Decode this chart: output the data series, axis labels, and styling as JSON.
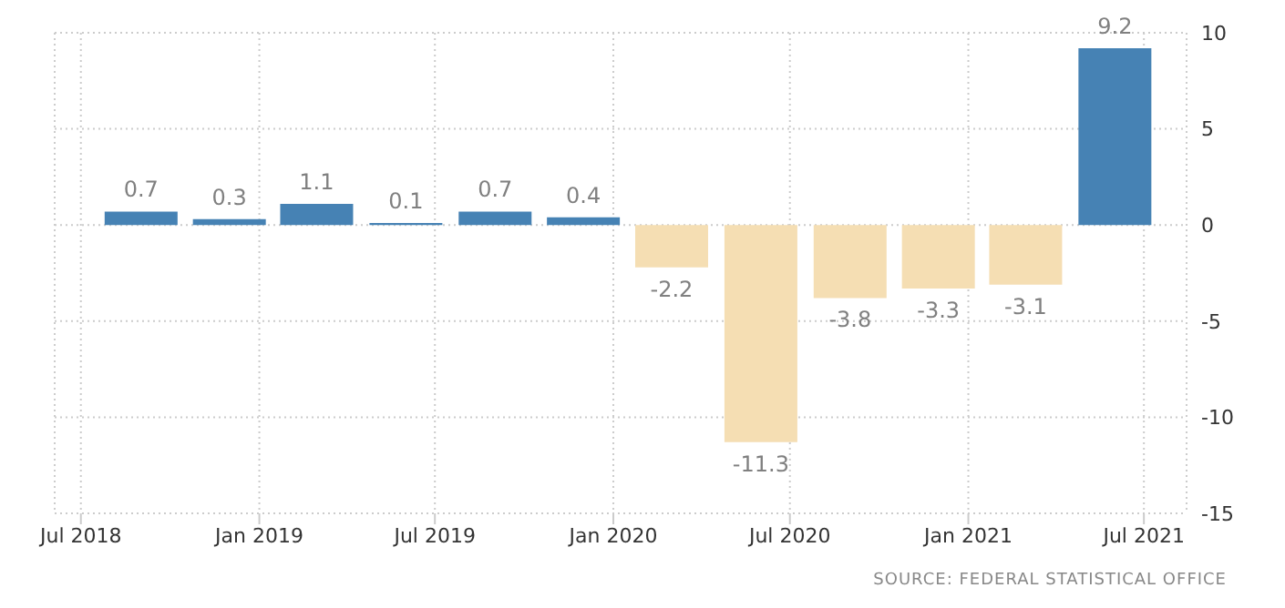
{
  "chart_data": {
    "type": "bar",
    "x": [
      "2018-09",
      "2018-12",
      "2019-03",
      "2019-06",
      "2019-09",
      "2019-12",
      "2020-03",
      "2020-06",
      "2020-09",
      "2020-12",
      "2021-03",
      "2021-06"
    ],
    "values": [
      0.7,
      0.3,
      1.1,
      0.1,
      0.7,
      0.4,
      -2.2,
      -11.3,
      -3.8,
      -3.3,
      -3.1,
      9.2
    ],
    "colors": [
      "#4682b4",
      "#4682b4",
      "#4682b4",
      "#4682b4",
      "#4682b4",
      "#4682b4",
      "#f5deb3",
      "#f5deb3",
      "#f5deb3",
      "#f5deb3",
      "#f5deb3",
      "#4682b4"
    ],
    "xlim": [
      "2018-06-04",
      "2021-08-14"
    ],
    "xticks": [
      {
        "value": "2018-07",
        "label": "Jul 2018"
      },
      {
        "value": "2019-01",
        "label": "Jan 2019"
      },
      {
        "value": "2019-07",
        "label": "Jul 2019"
      },
      {
        "value": "2020-01",
        "label": "Jan 2020"
      },
      {
        "value": "2020-07",
        "label": "Jul 2020"
      },
      {
        "value": "2021-01",
        "label": "Jan 2021"
      },
      {
        "value": "2021-07",
        "label": "Jul 2021"
      }
    ],
    "ylim": [
      -15,
      10
    ],
    "yticks": [
      -15,
      -10,
      -5,
      0,
      5,
      10
    ],
    "grid": true,
    "data_labels": true,
    "annotations": [
      "SOURCE: FEDERAL STATISTICAL OFFICE"
    ]
  }
}
